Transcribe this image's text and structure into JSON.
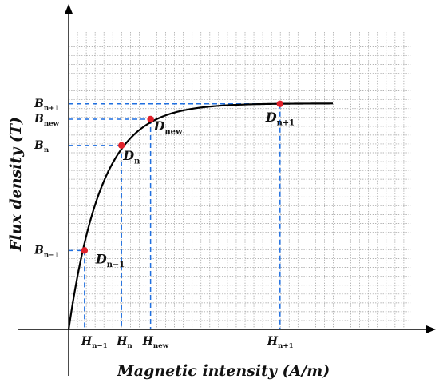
{
  "chart_data": {
    "type": "line",
    "xlabel": "Magnetic intensity (A/m)",
    "ylabel": "Flux density (T)",
    "grid": true,
    "curve_shape": "saturation",
    "points": [
      {
        "label_sub": "n−1",
        "x_label": "H",
        "x_sub": "n−1",
        "y_label": "B",
        "y_sub": "n−1",
        "x": 0.6,
        "y": 3.6
      },
      {
        "label_sub": "n",
        "x_label": "H",
        "x_sub": "n",
        "y_label": "B",
        "y_sub": "n",
        "x": 2.0,
        "y": 8.4
      },
      {
        "label_sub": "new",
        "x_label": "H",
        "x_sub": "new",
        "y_label": "B",
        "y_sub": "new",
        "x": 3.1,
        "y": 9.6
      },
      {
        "label_sub": "n+1",
        "x_label": "H",
        "x_sub": "n+1",
        "y_label": "B",
        "y_sub": "n+1",
        "x": 8.0,
        "y": 10.3
      }
    ],
    "point_letter": "D",
    "curve_xmax": 10.0,
    "xlim": [
      0,
      14
    ],
    "ylim": [
      0,
      12.3
    ],
    "grid_step": 0.333,
    "colors": {
      "curve": "#000000",
      "point": "#e0212b",
      "guide": "#1f6fe0",
      "grid": "#9a9a9a"
    }
  }
}
